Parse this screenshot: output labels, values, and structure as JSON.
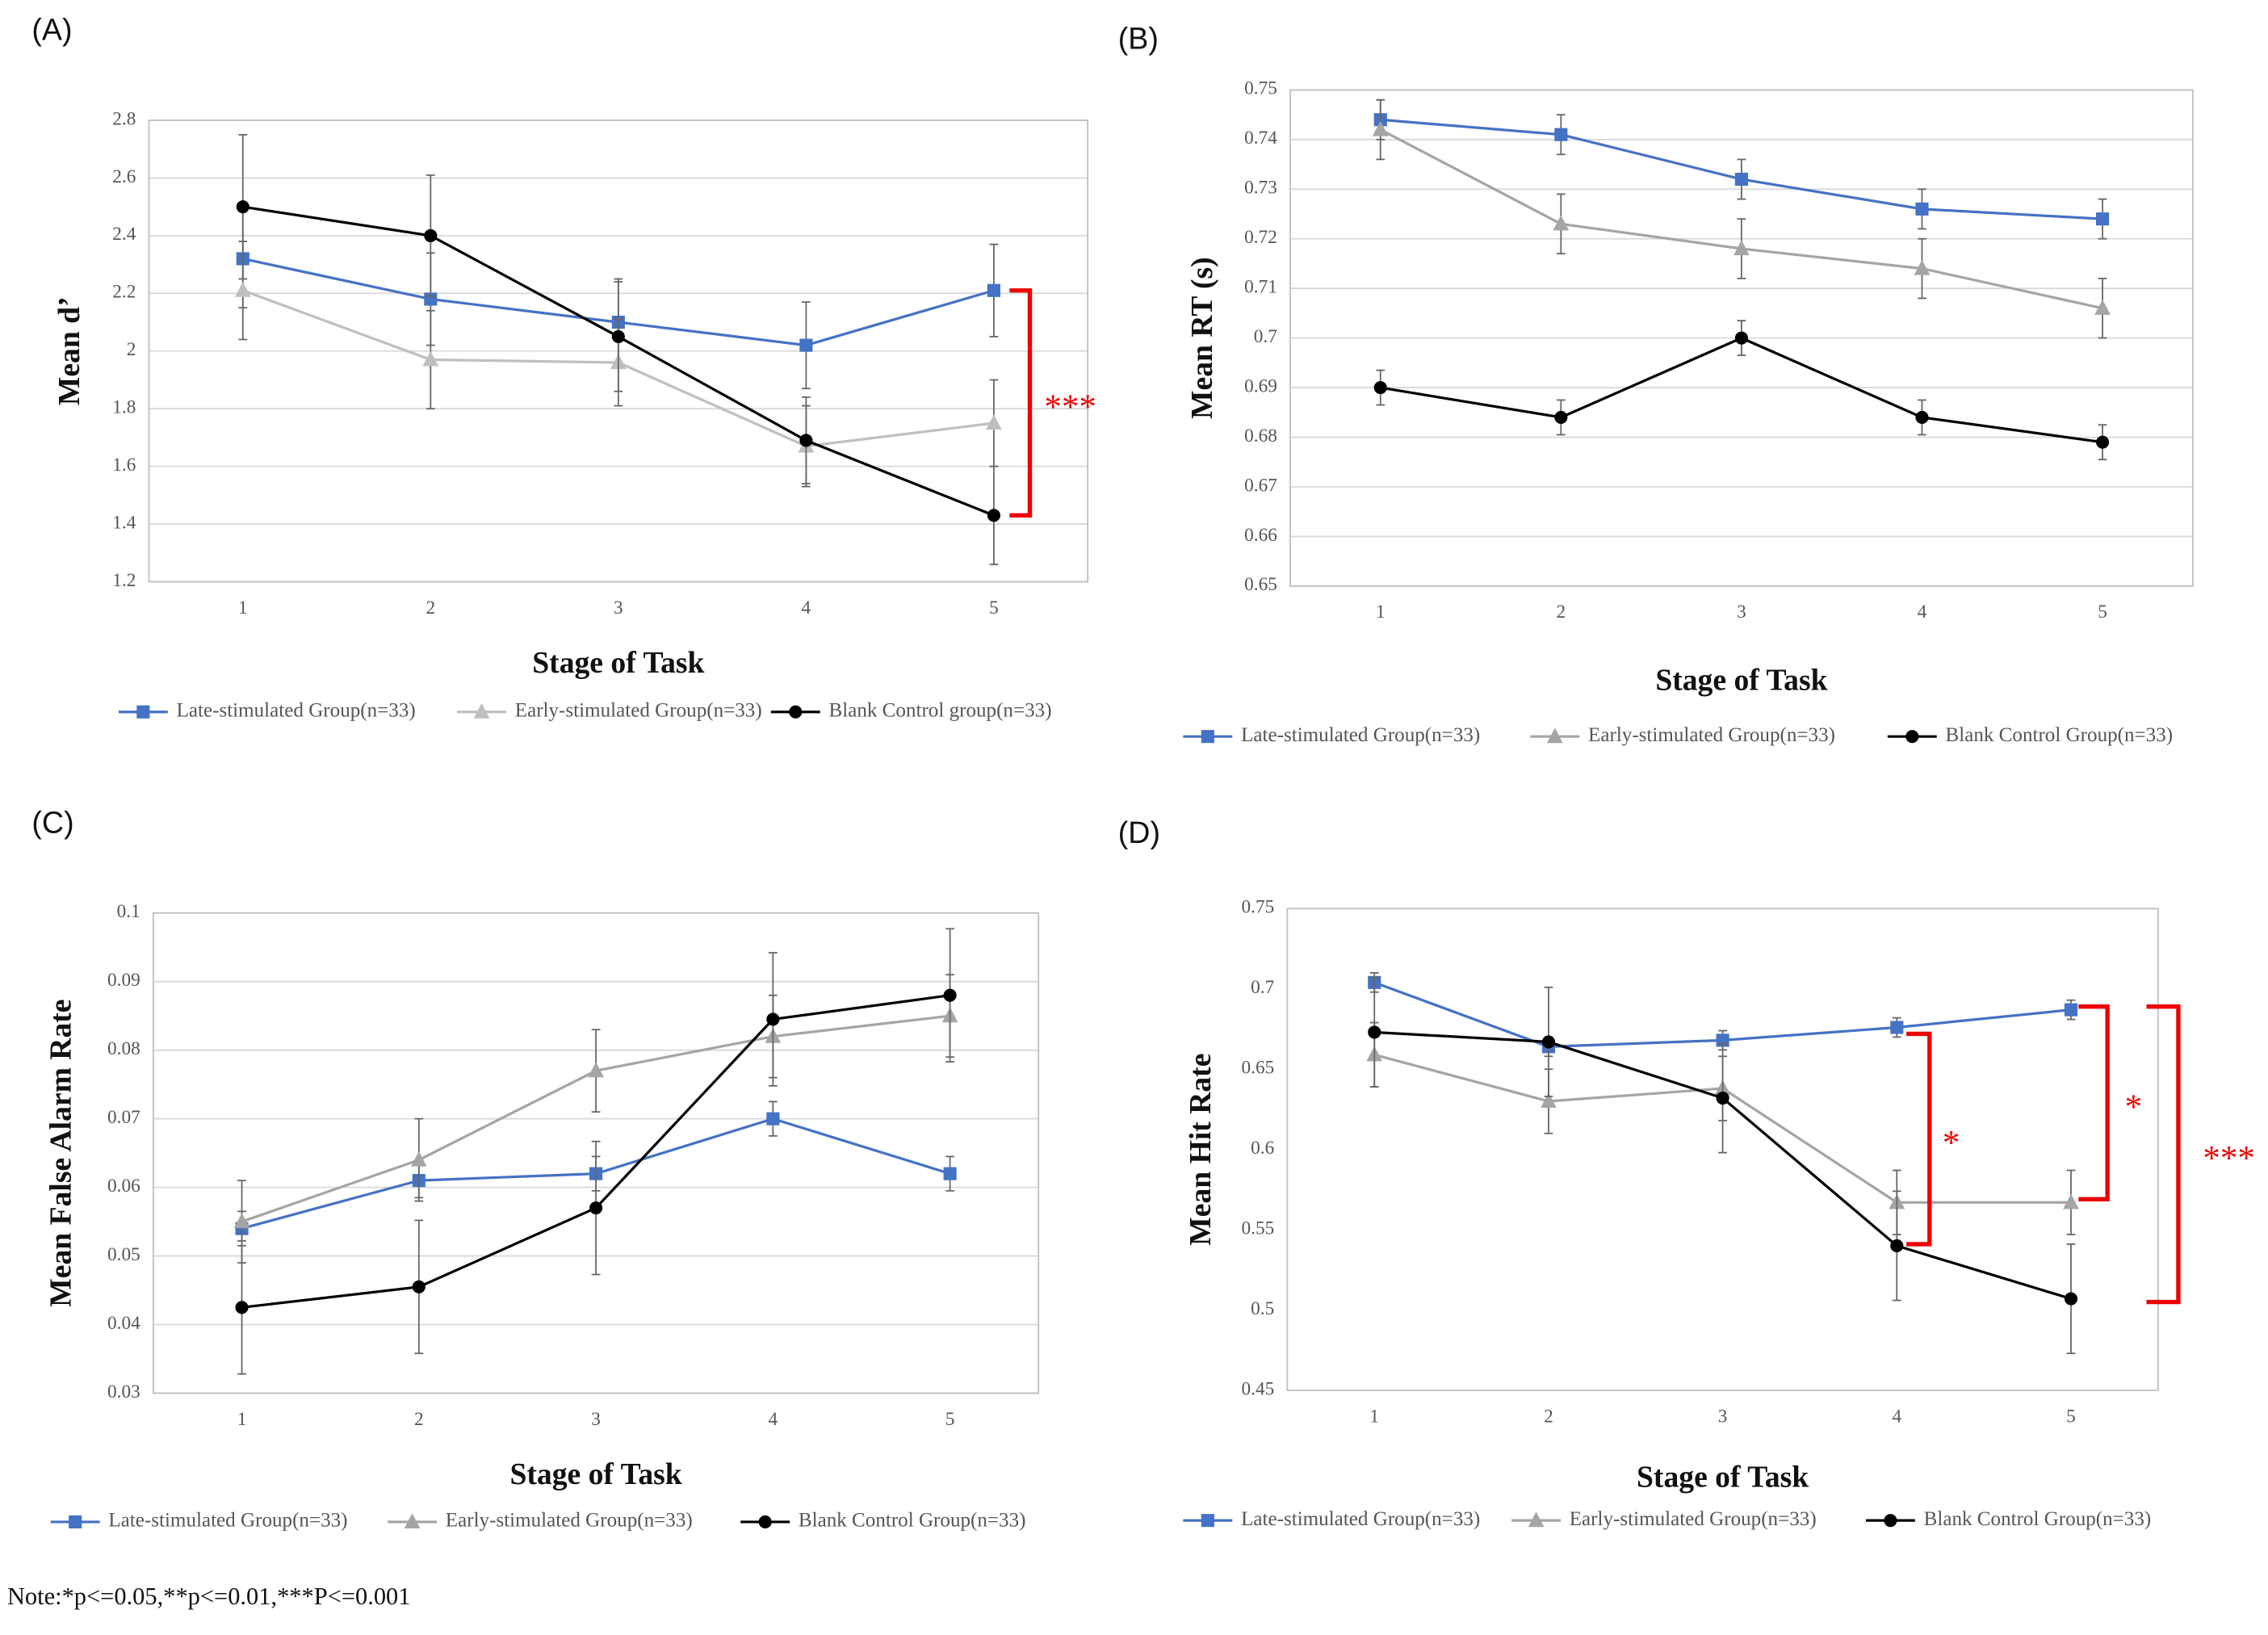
{
  "note": "Note:*p<=0.05,**p<=0.01,***P<=0.001",
  "chart_data": [
    {
      "type": "line",
      "panel": "(A)",
      "ylabel": "Mean  d’",
      "xlabel": "Stage of Task",
      "categories": [
        "1",
        "2",
        "3",
        "4",
        "5"
      ],
      "ylim": [
        1.2,
        2.8
      ],
      "yticks": [
        1.2,
        1.4,
        1.6,
        1.8,
        2,
        2.2,
        2.4,
        2.6,
        2.8
      ],
      "grid": true,
      "series": [
        {
          "name": "Late-stimulated Group(n=33)",
          "color": "#4472c4",
          "marker": "square",
          "values": [
            2.32,
            2.18,
            2.1,
            2.02,
            2.21
          ],
          "errors": [
            0.17,
            0.16,
            0.15,
            0.15,
            0.16
          ]
        },
        {
          "name": "Early-stimulated Group(n=33)",
          "color": "#bfbfbf",
          "marker": "triangle",
          "values": [
            2.21,
            1.97,
            1.96,
            1.67,
            1.75
          ],
          "errors": [
            0.17,
            0.17,
            0.15,
            0.14,
            0.15
          ]
        },
        {
          "name": "Blank Control group(n=33)",
          "color": "#000000",
          "marker": "circle",
          "values": [
            2.5,
            2.4,
            2.05,
            1.69,
            1.43
          ],
          "errors": [
            0.25,
            0.21,
            0.19,
            0.15,
            0.17
          ]
        }
      ],
      "brackets": [
        {
          "label": "***",
          "range": [
            1.43,
            2.21
          ]
        }
      ]
    },
    {
      "type": "line",
      "panel": "(B)",
      "ylabel": "Mean RT (s)",
      "xlabel": "Stage of Task",
      "categories": [
        "1",
        "2",
        "3",
        "4",
        "5"
      ],
      "ylim": [
        0.65,
        0.75
      ],
      "yticks": [
        0.65,
        0.66,
        0.67,
        0.68,
        0.69,
        0.7,
        0.71,
        0.72,
        0.73,
        0.74,
        0.75
      ],
      "grid": true,
      "series": [
        {
          "name": "Late-stimulated Group(n=33)",
          "color": "#4472c4",
          "marker": "square",
          "values": [
            0.744,
            0.741,
            0.732,
            0.726,
            0.724
          ],
          "errors": [
            0.004,
            0.004,
            0.004,
            0.004,
            0.004
          ]
        },
        {
          "name": "Early-stimulated Group(n=33)",
          "color": "#a5a5a5",
          "marker": "triangle",
          "values": [
            0.742,
            0.723,
            0.718,
            0.714,
            0.706
          ],
          "errors": [
            0.006,
            0.006,
            0.006,
            0.006,
            0.006
          ]
        },
        {
          "name": "Blank Control Group(n=33)",
          "color": "#000000",
          "marker": "circle",
          "values": [
            0.69,
            0.684,
            0.7,
            0.684,
            0.679
          ],
          "errors": [
            0.0035,
            0.0035,
            0.0035,
            0.0035,
            0.0035
          ]
        }
      ],
      "brackets": []
    },
    {
      "type": "line",
      "panel": "(C)",
      "ylabel": "Mean False Alarm Rate",
      "xlabel": "Stage of Task",
      "categories": [
        "1",
        "2",
        "3",
        "4",
        "5"
      ],
      "ylim": [
        0.03,
        0.1
      ],
      "yticks": [
        0.03,
        0.04,
        0.05,
        0.06,
        0.07,
        0.08,
        0.09,
        0.1
      ],
      "grid": true,
      "series": [
        {
          "name": "Late-stimulated Group(n=33)",
          "color": "#4472c4",
          "marker": "square",
          "values": [
            0.054,
            0.061,
            0.062,
            0.07,
            0.062
          ],
          "errors": [
            0.0025,
            0.0025,
            0.0025,
            0.0025,
            0.0025
          ]
        },
        {
          "name": "Early-stimulated Group(n=33)",
          "color": "#a5a5a5",
          "marker": "triangle",
          "values": [
            0.055,
            0.064,
            0.077,
            0.082,
            0.085
          ],
          "errors": [
            0.006,
            0.006,
            0.006,
            0.006,
            0.006
          ]
        },
        {
          "name": "Blank Control Group(n=33)",
          "color": "#000000",
          "marker": "circle",
          "values": [
            0.0425,
            0.0455,
            0.057,
            0.0845,
            0.088
          ],
          "errors": [
            0.0097,
            0.0097,
            0.0097,
            0.0097,
            0.0097
          ]
        }
      ],
      "brackets": []
    },
    {
      "type": "line",
      "panel": "(D)",
      "ylabel": "Mean Hit Rate",
      "xlabel": "Stage of Task",
      "categories": [
        "1",
        "2",
        "3",
        "4",
        "5"
      ],
      "ylim": [
        0.45,
        0.75
      ],
      "yticks": [
        0.45,
        0.5,
        0.55,
        0.6,
        0.65,
        0.7,
        0.75
      ],
      "grid": false,
      "series": [
        {
          "name": "Late-stimulated Group(n=33)",
          "color": "#4472c4",
          "marker": "square",
          "values": [
            0.704,
            0.664,
            0.668,
            0.676,
            0.687
          ],
          "errors": [
            0.006,
            0.006,
            0.006,
            0.006,
            0.006
          ]
        },
        {
          "name": "Early-stimulated Group(n=33)",
          "color": "#a5a5a5",
          "marker": "triangle",
          "values": [
            0.659,
            0.63,
            0.638,
            0.567,
            0.567
          ],
          "errors": [
            0.02,
            0.02,
            0.02,
            0.02,
            0.02
          ]
        },
        {
          "name": "Blank Control Group(n=33)",
          "color": "#000000",
          "marker": "circle",
          "values": [
            0.673,
            0.667,
            0.632,
            0.54,
            0.507
          ],
          "errors": [
            0.034,
            0.034,
            0.034,
            0.034,
            0.034
          ]
        }
      ],
      "brackets": [
        {
          "label": "*",
          "range": [
            0.541,
            0.672
          ]
        },
        {
          "label": "*",
          "range": [
            0.569,
            0.689
          ]
        },
        {
          "label": "***",
          "range": [
            0.505,
            0.689
          ]
        }
      ]
    }
  ]
}
